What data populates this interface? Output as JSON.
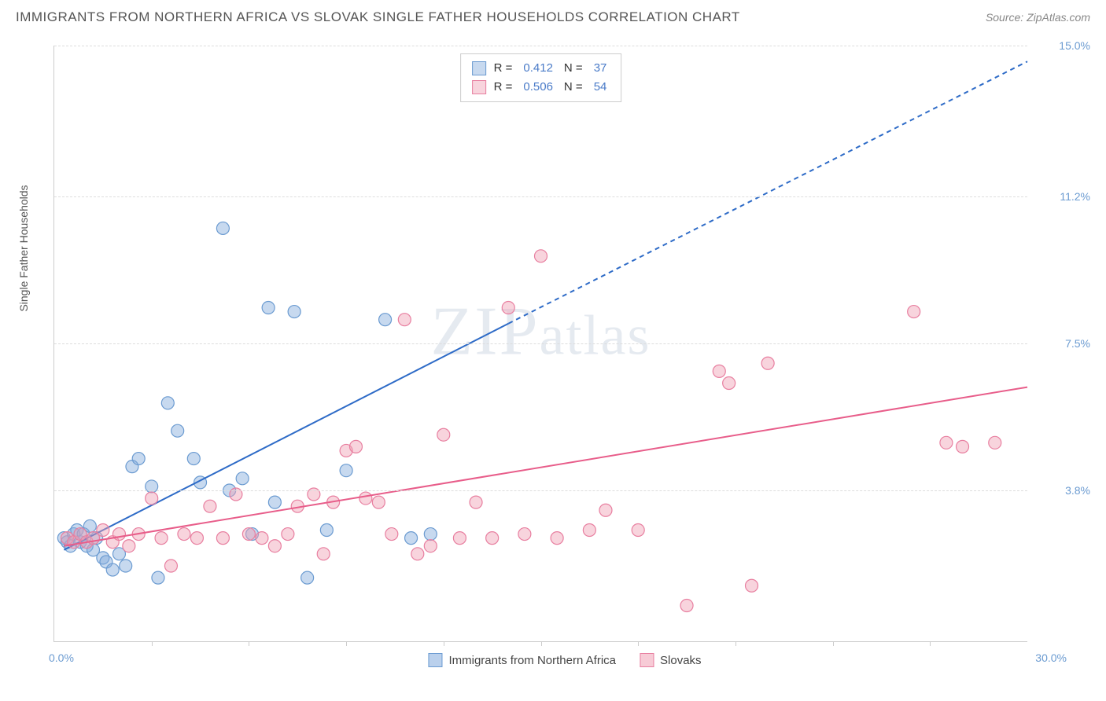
{
  "title": "IMMIGRANTS FROM NORTHERN AFRICA VS SLOVAK SINGLE FATHER HOUSEHOLDS CORRELATION CHART",
  "source": "Source: ZipAtlas.com",
  "watermark": "ZIPatlas",
  "chart": {
    "type": "scatter",
    "background_color": "#ffffff",
    "grid_color": "#dddddd",
    "axis_color": "#cccccc",
    "y_axis_title": "Single Father Households",
    "x_axis_implicit_title": "",
    "xlim": [
      0,
      30
    ],
    "ylim": [
      0,
      15
    ],
    "y_ticks": [
      {
        "value": 3.8,
        "label": "3.8%"
      },
      {
        "value": 7.5,
        "label": "7.5%"
      },
      {
        "value": 11.2,
        "label": "11.2%"
      },
      {
        "value": 15.0,
        "label": "15.0%"
      }
    ],
    "x_corner_left": "0.0%",
    "x_corner_right": "30.0%",
    "x_minor_ticks": [
      3,
      6,
      9,
      12,
      15,
      18,
      21,
      24,
      27
    ],
    "label_color": "#6b9bd1",
    "label_fontsize": 14,
    "title_fontsize": 17,
    "series": [
      {
        "name": "Immigrants from Northern Africa",
        "color_fill": "rgba(130,170,220,0.45)",
        "color_stroke": "#6b9bd1",
        "marker_radius": 8,
        "R": "0.412",
        "N": "37",
        "trend": {
          "color": "#2e6bc7",
          "width": 2,
          "solid_from": [
            0.3,
            2.3
          ],
          "solid_to": [
            14,
            8.0
          ],
          "dashed_to": [
            30,
            14.6
          ]
        },
        "points": [
          [
            0.3,
            2.6
          ],
          [
            0.4,
            2.5
          ],
          [
            0.5,
            2.4
          ],
          [
            0.6,
            2.7
          ],
          [
            0.7,
            2.8
          ],
          [
            0.8,
            2.5
          ],
          [
            0.9,
            2.7
          ],
          [
            1.0,
            2.4
          ],
          [
            1.1,
            2.9
          ],
          [
            1.2,
            2.3
          ],
          [
            1.3,
            2.6
          ],
          [
            1.5,
            2.1
          ],
          [
            1.6,
            2.0
          ],
          [
            1.8,
            1.8
          ],
          [
            2.0,
            2.2
          ],
          [
            2.2,
            1.9
          ],
          [
            2.4,
            4.4
          ],
          [
            2.6,
            4.6
          ],
          [
            3.0,
            3.9
          ],
          [
            3.2,
            1.6
          ],
          [
            3.5,
            6.0
          ],
          [
            3.8,
            5.3
          ],
          [
            4.3,
            4.6
          ],
          [
            4.5,
            4.0
          ],
          [
            5.2,
            10.4
          ],
          [
            5.4,
            3.8
          ],
          [
            5.8,
            4.1
          ],
          [
            6.1,
            2.7
          ],
          [
            6.6,
            8.4
          ],
          [
            6.8,
            3.5
          ],
          [
            7.4,
            8.3
          ],
          [
            7.8,
            1.6
          ],
          [
            8.4,
            2.8
          ],
          [
            9.0,
            4.3
          ],
          [
            10.2,
            8.1
          ],
          [
            11.0,
            2.6
          ],
          [
            11.6,
            2.7
          ]
        ]
      },
      {
        "name": "Slovaks",
        "color_fill": "rgba(240,160,180,0.45)",
        "color_stroke": "#e87fa0",
        "marker_radius": 8,
        "R": "0.506",
        "N": "54",
        "trend": {
          "color": "#e85d8a",
          "width": 2,
          "solid_from": [
            0.3,
            2.4
          ],
          "solid_to": [
            30,
            6.4
          ],
          "dashed_to": null
        },
        "points": [
          [
            0.4,
            2.6
          ],
          [
            0.6,
            2.5
          ],
          [
            0.8,
            2.7
          ],
          [
            1.0,
            2.5
          ],
          [
            1.2,
            2.6
          ],
          [
            1.5,
            2.8
          ],
          [
            1.8,
            2.5
          ],
          [
            2.0,
            2.7
          ],
          [
            2.3,
            2.4
          ],
          [
            2.6,
            2.7
          ],
          [
            3.0,
            3.6
          ],
          [
            3.3,
            2.6
          ],
          [
            3.6,
            1.9
          ],
          [
            4.0,
            2.7
          ],
          [
            4.4,
            2.6
          ],
          [
            4.8,
            3.4
          ],
          [
            5.2,
            2.6
          ],
          [
            5.6,
            3.7
          ],
          [
            6.0,
            2.7
          ],
          [
            6.4,
            2.6
          ],
          [
            6.8,
            2.4
          ],
          [
            7.2,
            2.7
          ],
          [
            7.5,
            3.4
          ],
          [
            8.0,
            3.7
          ],
          [
            8.3,
            2.2
          ],
          [
            8.6,
            3.5
          ],
          [
            9.0,
            4.8
          ],
          [
            9.3,
            4.9
          ],
          [
            9.6,
            3.6
          ],
          [
            10.0,
            3.5
          ],
          [
            10.4,
            2.7
          ],
          [
            10.8,
            8.1
          ],
          [
            11.2,
            2.2
          ],
          [
            11.6,
            2.4
          ],
          [
            12.0,
            5.2
          ],
          [
            12.5,
            2.6
          ],
          [
            13.0,
            3.5
          ],
          [
            13.5,
            2.6
          ],
          [
            14.0,
            8.4
          ],
          [
            14.5,
            2.7
          ],
          [
            15.0,
            9.7
          ],
          [
            15.5,
            2.6
          ],
          [
            16.5,
            2.8
          ],
          [
            17.0,
            3.3
          ],
          [
            18.0,
            2.8
          ],
          [
            19.5,
            0.9
          ],
          [
            20.5,
            6.8
          ],
          [
            20.8,
            6.5
          ],
          [
            21.5,
            1.4
          ],
          [
            22.0,
            7.0
          ],
          [
            26.5,
            8.3
          ],
          [
            27.5,
            5.0
          ],
          [
            28.0,
            4.9
          ],
          [
            29.0,
            5.0
          ]
        ]
      }
    ],
    "legend": {
      "border_color": "#cccccc",
      "R_label": "R  =",
      "N_label": "N  ="
    },
    "bottom_legend": {
      "items": [
        {
          "label": "Immigrants from Northern Africa",
          "fill": "rgba(130,170,220,0.55)",
          "stroke": "#6b9bd1"
        },
        {
          "label": "Slovaks",
          "fill": "rgba(240,160,180,0.55)",
          "stroke": "#e87fa0"
        }
      ]
    }
  }
}
